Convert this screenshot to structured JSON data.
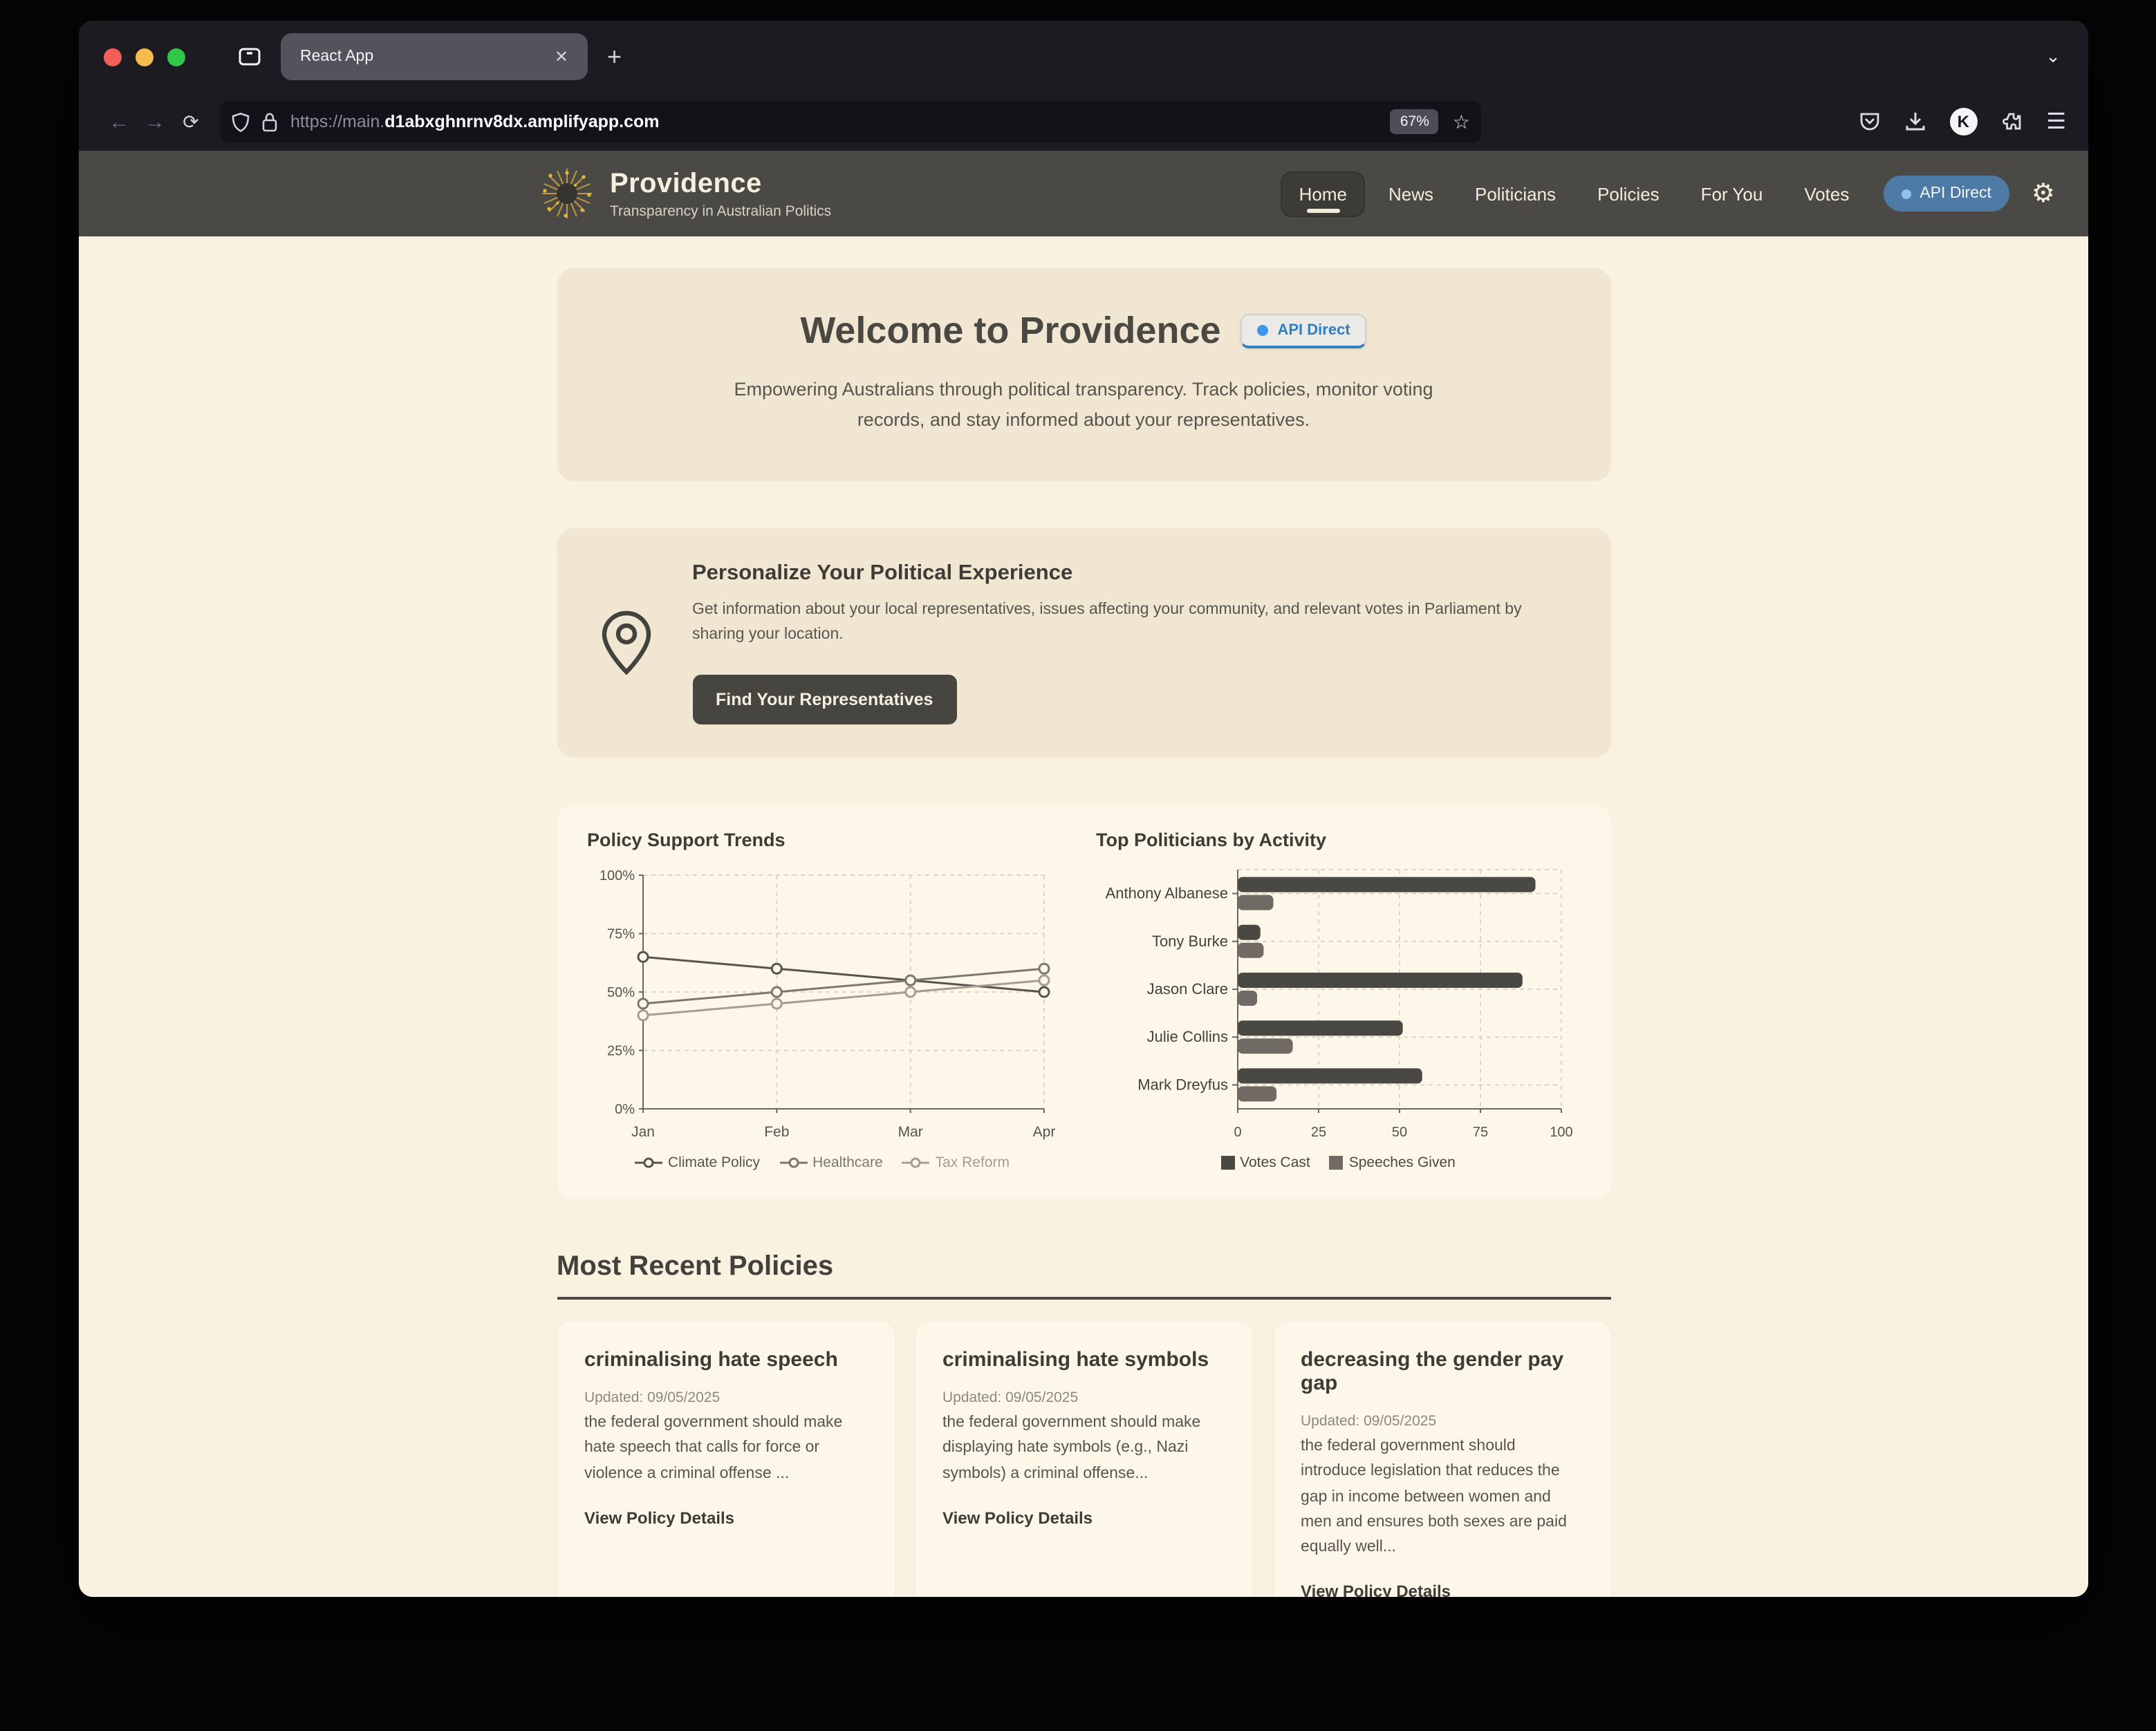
{
  "browser": {
    "tab_title": "React App",
    "close_glyph": "✕",
    "new_tab_glyph": "+",
    "tabs_chevron_glyph": "⌄",
    "back_glyph": "←",
    "forward_glyph": "→",
    "reload_glyph": "⟳",
    "url_prefix": "https://main.",
    "url_domain": "d1abxghnrnv8dx.amplifyapp.com",
    "zoom_level": "67%",
    "star_glyph": "☆",
    "avatar_letter": "K",
    "hamburger_glyph": "☰"
  },
  "header": {
    "brand": "Providence",
    "tagline": "Transparency in Australian Politics",
    "nav": [
      {
        "label": "Home",
        "active": true
      },
      {
        "label": "News",
        "active": false
      },
      {
        "label": "Politicians",
        "active": false
      },
      {
        "label": "Policies",
        "active": false
      },
      {
        "label": "For You",
        "active": false
      },
      {
        "label": "Votes",
        "active": false
      }
    ],
    "api_badge": "API Direct",
    "gear_glyph": "⚙"
  },
  "hero": {
    "title": "Welcome to Providence",
    "badge": "API Direct",
    "description": "Empowering Australians through political transparency. Track policies, monitor voting records, and stay informed about your representatives."
  },
  "personalize": {
    "title": "Personalize Your Political Experience",
    "description": "Get information about your local representatives, issues affecting your community, and relevant votes in Parliament by sharing your location.",
    "button": "Find Your Representatives"
  },
  "chart_data": [
    {
      "type": "line",
      "title": "Policy Support Trends",
      "x": [
        "Jan",
        "Feb",
        "Mar",
        "Apr"
      ],
      "series": [
        {
          "name": "Climate Policy",
          "values": [
            65,
            60,
            55,
            50
          ],
          "color": "#57544e"
        },
        {
          "name": "Healthcare",
          "values": [
            45,
            50,
            55,
            60
          ],
          "color": "#7d786e"
        },
        {
          "name": "Tax Reform",
          "values": [
            40,
            45,
            50,
            55
          ],
          "color": "#a49e90"
        }
      ],
      "ylim": [
        0,
        100
      ],
      "yticks": [
        0,
        25,
        50,
        75,
        100
      ],
      "ytick_suffix": "%",
      "grid": true,
      "legend_position": "bottom"
    },
    {
      "type": "bar",
      "orientation": "horizontal",
      "title": "Top Politicians by Activity",
      "categories": [
        "Anthony Albanese",
        "Tony Burke",
        "Jason Clare",
        "Julie Collins",
        "Mark Dreyfus"
      ],
      "series": [
        {
          "name": "Votes Cast",
          "values": [
            92,
            7,
            88,
            51,
            57
          ],
          "color": "#4a4843"
        },
        {
          "name": "Speeches Given",
          "values": [
            11,
            8,
            6,
            17,
            12
          ],
          "color": "#6f6b64"
        }
      ],
      "xlim": [
        0,
        100
      ],
      "xticks": [
        0,
        25,
        50,
        75,
        100
      ],
      "grid": true,
      "legend_position": "bottom"
    }
  ],
  "policies": {
    "title": "Most Recent Policies",
    "link_label": "View Policy Details",
    "cards": [
      {
        "title": "criminalising hate speech",
        "updated": "Updated: 09/05/2025",
        "body": "the federal government should make hate speech that calls for force or violence a criminal offense ...",
        "link": "View Policy Details"
      },
      {
        "title": "criminalising hate symbols",
        "updated": "Updated: 09/05/2025",
        "body": "the federal government should make displaying hate symbols (e.g., Nazi symbols) a criminal offense...",
        "link": "View Policy Details"
      },
      {
        "title": "decreasing the gender pay gap",
        "updated": "Updated: 09/05/2025",
        "body": "the federal government should introduce legislation that reduces the gap in income between women and men and ensures both sexes are paid equally well...",
        "link": "View Policy Details"
      }
    ]
  },
  "colors": {
    "chart_panel_bg": "#fcf7e8",
    "grid_line": "#ddd5c2",
    "axis_line": "#6b675f",
    "accent_blue": "#4d7ba6",
    "page_bg": "#faf2e1",
    "section_bg": "#f0e6d1",
    "header_bg": "#4a4946"
  }
}
